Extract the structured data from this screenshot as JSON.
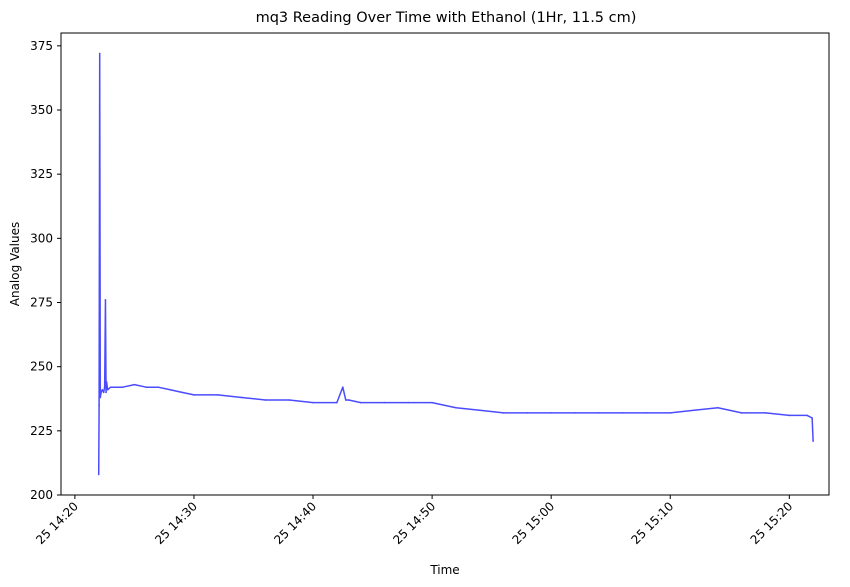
{
  "chart_data": {
    "type": "line",
    "title": "mq3 Reading Over Time with Ethanol (1Hr, 11.5 cm)",
    "xlabel": "Time",
    "ylabel": "Analog Values",
    "ylim": [
      200,
      380
    ],
    "xlim": [
      "25 14:18:50",
      "25 15:23:20"
    ],
    "grid": false,
    "legend": "none",
    "series_color": "#4c4cff",
    "x_ticks": [
      {
        "t": "25 14:20:00",
        "label": "25 14:20"
      },
      {
        "t": "25 14:30:00",
        "label": "25 14:30"
      },
      {
        "t": "25 14:40:00",
        "label": "25 14:40"
      },
      {
        "t": "25 14:50:00",
        "label": "25 14:50"
      },
      {
        "t": "25 15:00:00",
        "label": "25 15:00"
      },
      {
        "t": "25 15:10:00",
        "label": "25 15:10"
      },
      {
        "t": "25 15:20:00",
        "label": "25 15:20"
      }
    ],
    "y_ticks": [
      200,
      225,
      250,
      275,
      300,
      325,
      350,
      375
    ],
    "series": [
      {
        "x": [
          "25 14:22:00",
          "25 14:22:02",
          "25 14:22:05",
          "25 14:22:08",
          "25 14:22:12",
          "25 14:22:18",
          "25 14:22:25",
          "25 14:22:30",
          "25 14:22:34",
          "25 14:22:37",
          "25 14:22:40",
          "25 14:22:45",
          "25 14:23:00",
          "25 14:23:30",
          "25 14:24:00",
          "25 14:25:00",
          "25 14:26:00",
          "25 14:27:00",
          "25 14:28:00",
          "25 14:29:00",
          "25 14:30:00",
          "25 14:32:00",
          "25 14:34:00",
          "25 14:36:00",
          "25 14:38:00",
          "25 14:40:00",
          "25 14:42:00",
          "25 14:42:30",
          "25 14:42:45",
          "25 14:43:00",
          "25 14:44:00",
          "25 14:46:00",
          "25 14:48:00",
          "25 14:50:00",
          "25 14:52:00",
          "25 14:54:00",
          "25 14:56:00",
          "25 14:58:00",
          "25 15:00:00",
          "25 15:02:00",
          "25 15:04:00",
          "25 15:06:00",
          "25 15:08:00",
          "25 15:10:00",
          "25 15:12:00",
          "25 15:14:00",
          "25 15:16:00",
          "25 15:18:00",
          "25 15:20:00",
          "25 15:21:30",
          "25 15:21:55",
          "25 15:22:00"
        ],
        "values": [
          208,
          235,
          372,
          238,
          240,
          241,
          240,
          242,
          276,
          240,
          244,
          241,
          242,
          242,
          242,
          243,
          242,
          242,
          241,
          240,
          239,
          239,
          238,
          237,
          237,
          236,
          236,
          242,
          237,
          237,
          236,
          236,
          236,
          236,
          234,
          233,
          232,
          232,
          232,
          232,
          232,
          232,
          232,
          232,
          233,
          234,
          232,
          232,
          231,
          231,
          230,
          221
        ]
      }
    ]
  }
}
